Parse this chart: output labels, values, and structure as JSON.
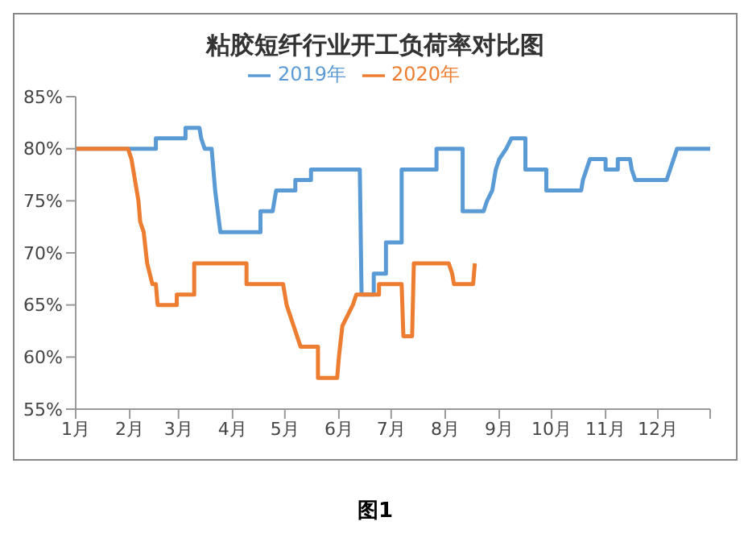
{
  "chart_data": {
    "type": "line",
    "title": "粘胶短纤行业开工负荷率对比图",
    "annotations": [
      "图1"
    ],
    "xlim": [
      "--01-01",
      "--12-31"
    ],
    "xticks": [
      {
        "value": "--01-01",
        "label": "1月"
      },
      {
        "value": "--02-01",
        "label": "2月"
      },
      {
        "value": "--03-01",
        "label": "3月"
      },
      {
        "value": "--04-01",
        "label": "4月"
      },
      {
        "value": "--05-01",
        "label": "5月"
      },
      {
        "value": "--06-01",
        "label": "6月"
      },
      {
        "value": "--07-01",
        "label": "7月"
      },
      {
        "value": "--08-01",
        "label": "8月"
      },
      {
        "value": "--09-01",
        "label": "9月"
      },
      {
        "value": "--10-01",
        "label": "10月"
      },
      {
        "value": "--11-01",
        "label": "11月"
      },
      {
        "value": "--12-01",
        "label": "12月"
      },
      {
        "value": "--12-31",
        "label": null
      }
    ],
    "ylim": [
      55,
      85
    ],
    "yticks": [
      {
        "value": 55,
        "label": "55%"
      },
      {
        "value": 60,
        "label": "60%"
      },
      {
        "value": 65,
        "label": "65%"
      },
      {
        "value": 70,
        "label": "70%"
      },
      {
        "value": 75,
        "label": "75%"
      },
      {
        "value": 80,
        "label": "80%"
      },
      {
        "value": 85,
        "label": "85%"
      }
    ],
    "grid": false,
    "legend": "top",
    "marker": "none",
    "line_style": "solid",
    "series": [
      {
        "name": "2019年",
        "color": "#5b9bd5",
        "x": [
          "--01-01",
          "--02-16",
          "--02-16",
          "--03-05",
          "--03-05",
          "--03-13",
          "--03-14",
          "--03-16",
          "--03-20",
          "--03-22",
          "--03-25",
          "--04-17",
          "--04-17",
          "--04-24",
          "--04-25",
          "--04-26",
          "--05-07",
          "--05-07",
          "--05-16",
          "--05-16",
          "--06-13",
          "--06-14",
          "--06-21",
          "--06-21",
          "--06-28",
          "--06-28",
          "--07-07",
          "--07-07",
          "--07-27",
          "--07-27",
          "--08-11",
          "--08-11",
          "--08-23",
          "--08-25",
          "--08-28",
          "--08-30",
          "--09-01",
          "--09-05",
          "--09-08",
          "--09-16",
          "--09-16",
          "--09-28",
          "--09-28",
          "--10-18",
          "--10-19",
          "--10-23",
          "--11-01",
          "--11-01",
          "--11-08",
          "--11-08",
          "--11-15",
          "--11-16",
          "--11-18",
          "--12-06",
          "--12-08",
          "--12-10",
          "--12-12",
          "--12-31"
        ],
        "values": [
          80,
          80,
          81,
          81,
          82,
          82,
          81,
          80,
          80,
          76,
          72,
          72,
          74,
          74,
          75,
          76,
          76,
          77,
          77,
          78,
          78,
          66,
          66,
          68,
          68,
          71,
          71,
          78,
          78,
          80,
          80,
          74,
          74,
          75,
          76,
          78,
          79,
          80,
          81,
          81,
          78,
          78,
          76,
          76,
          77,
          79,
          79,
          78,
          78,
          79,
          79,
          78,
          77,
          77,
          78,
          79,
          80,
          80
        ]
      },
      {
        "name": "2020年",
        "color": "#ed7d31",
        "x": [
          "--01-01",
          "--01-31",
          "--02-02",
          "--02-04",
          "--02-06",
          "--02-07",
          "--02-09",
          "--02-11",
          "--02-14",
          "--02-16",
          "--02-17",
          "--02-28",
          "--02-28",
          "--03-10",
          "--03-10",
          "--04-09",
          "--04-09",
          "--04-30",
          "--05-02",
          "--05-06",
          "--05-10",
          "--05-20",
          "--05-20",
          "--05-31",
          "--06-01",
          "--06-03",
          "--06-06",
          "--06-09",
          "--06-11",
          "--06-24",
          "--06-24",
          "--07-07",
          "--07-08",
          "--07-13",
          "--07-14",
          "--08-03",
          "--08-05",
          "--08-06",
          "--08-17",
          "--08-18"
        ],
        "values": [
          80,
          80,
          79,
          77,
          75,
          73,
          72,
          69,
          67,
          67,
          65,
          65,
          66,
          66,
          69,
          69,
          67,
          67,
          65,
          63,
          61,
          61,
          58,
          58,
          60,
          63,
          64,
          65,
          66,
          66,
          67,
          67,
          62,
          62,
          69,
          69,
          68,
          67,
          67,
          69
        ]
      }
    ]
  }
}
